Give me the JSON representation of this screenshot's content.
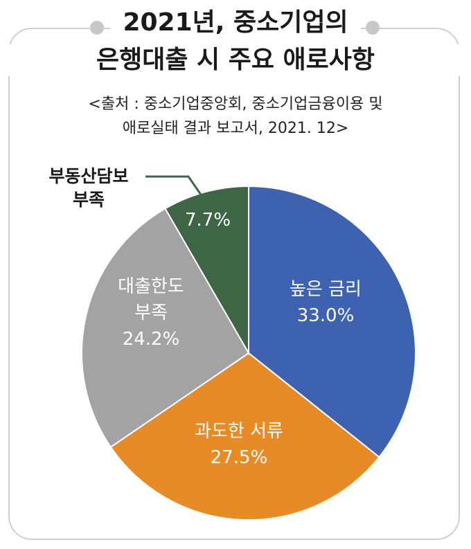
{
  "title_line1": "2021년, 중소기업의",
  "title_line2": "은행대출 시 주요 애로사항",
  "source_line1": "<출처 : 중소기업중앙회, 중소기업금융이용 및",
  "source_line2": "애로실태 결과 보고서, 2021. 12>",
  "chart_data": {
    "type": "pie",
    "title": "2021년, 중소기업의 은행대출 시 주요 애로사항",
    "slices": [
      {
        "name_lines": [
          "높은 금리"
        ],
        "value": 33.0,
        "label": "33.0%",
        "color": "#3d63b0"
      },
      {
        "name_lines": [
          "과도한 서류"
        ],
        "value": 27.5,
        "label": "27.5%",
        "color": "#e68b26"
      },
      {
        "name_lines": [
          "대출한도",
          "부족"
        ],
        "value": 24.2,
        "label": "24.2%",
        "color": "#a3a3a3"
      },
      {
        "name_lines": [
          "부동산담보",
          "부족"
        ],
        "value": 7.7,
        "label": "7.7%",
        "color": "#3d6645"
      }
    ]
  }
}
